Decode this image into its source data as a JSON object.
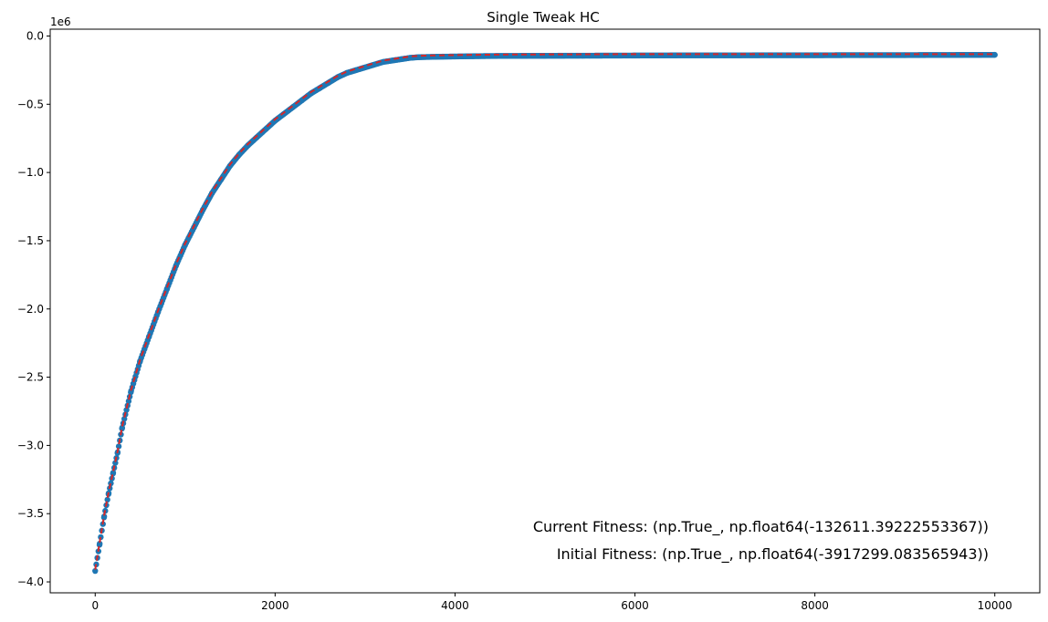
{
  "chart_data": {
    "type": "scatter",
    "title": "Single Tweak HC",
    "xlabel": "",
    "ylabel": "",
    "y_offset_label": "1e6",
    "xlim": [
      -500,
      10500
    ],
    "ylim": [
      -4.08,
      0.05
    ],
    "x_ticks": [
      0,
      2000,
      4000,
      6000,
      8000,
      10000
    ],
    "x_tick_labels": [
      "0",
      "2000",
      "4000",
      "6000",
      "8000",
      "10000"
    ],
    "y_ticks": [
      0.0,
      -0.5,
      -1.0,
      -1.5,
      -2.0,
      -2.5,
      -3.0,
      -3.5,
      -4.0
    ],
    "y_tick_labels": [
      "0.0",
      "−0.5",
      "−1.0",
      "−1.5",
      "−2.0",
      "−2.5",
      "−3.0",
      "−3.5",
      "−4.0"
    ],
    "grid": false,
    "series": [
      {
        "color": "#1f77b4",
        "marker": "circle",
        "x": [
          0,
          50,
          100,
          150,
          200,
          250,
          300,
          400,
          500,
          600,
          700,
          800,
          900,
          1000,
          1100,
          1200,
          1300,
          1400,
          1500,
          1600,
          1700,
          1800,
          1900,
          2000,
          2100,
          2200,
          2300,
          2400,
          2500,
          2600,
          2700,
          2800,
          2900,
          3000,
          3100,
          3200,
          3300,
          3400,
          3500,
          3600,
          3800,
          4000,
          4200,
          4500,
          5000,
          5500,
          6000,
          6500,
          7000,
          7500,
          8000,
          8500,
          9000,
          9500,
          10000
        ],
        "y": [
          -3.92,
          -3.72,
          -3.52,
          -3.35,
          -3.2,
          -3.05,
          -2.87,
          -2.6,
          -2.38,
          -2.2,
          -2.02,
          -1.85,
          -1.68,
          -1.53,
          -1.4,
          -1.27,
          -1.15,
          -1.05,
          -0.95,
          -0.87,
          -0.8,
          -0.74,
          -0.68,
          -0.62,
          -0.57,
          -0.52,
          -0.47,
          -0.42,
          -0.38,
          -0.34,
          -0.3,
          -0.27,
          -0.25,
          -0.23,
          -0.21,
          -0.19,
          -0.18,
          -0.17,
          -0.16,
          -0.155,
          -0.152,
          -0.15,
          -0.148,
          -0.146,
          -0.145,
          -0.144,
          -0.143,
          -0.142,
          -0.142,
          -0.141,
          -0.141,
          -0.14,
          -0.14,
          -0.139,
          -0.138
        ]
      },
      {
        "color": "#d62728",
        "style": "dashed line",
        "x": [
          0,
          50,
          100,
          150,
          200,
          250,
          300,
          400,
          500,
          600,
          700,
          800,
          900,
          1000,
          1100,
          1200,
          1300,
          1400,
          1500,
          1600,
          1700,
          1800,
          1900,
          2000,
          2100,
          2200,
          2300,
          2400,
          2500,
          2600,
          2700,
          2800,
          2900,
          3000,
          3100,
          3200,
          3300,
          3400,
          3500,
          3600,
          3800,
          4000,
          4200,
          4500,
          5000,
          5500,
          6000,
          6500,
          7000,
          7500,
          8000,
          8500,
          9000,
          9500,
          10000
        ],
        "y": [
          -3.91,
          -3.71,
          -3.51,
          -3.34,
          -3.19,
          -3.04,
          -2.86,
          -2.59,
          -2.37,
          -2.19,
          -2.01,
          -1.84,
          -1.67,
          -1.52,
          -1.39,
          -1.26,
          -1.14,
          -1.04,
          -0.94,
          -0.86,
          -0.79,
          -0.73,
          -0.67,
          -0.61,
          -0.56,
          -0.51,
          -0.46,
          -0.41,
          -0.37,
          -0.33,
          -0.29,
          -0.26,
          -0.24,
          -0.22,
          -0.2,
          -0.18,
          -0.17,
          -0.16,
          -0.15,
          -0.145,
          -0.142,
          -0.14,
          -0.138,
          -0.136,
          -0.135,
          -0.134,
          -0.133,
          -0.133,
          -0.133,
          -0.133,
          -0.133,
          -0.133,
          -0.133,
          -0.133,
          -0.133
        ]
      }
    ],
    "annotations": [
      "Current Fitness: (np.True_, np.float64(-132611.39222553367))",
      "Initial Fitness: (np.True_, np.float64(-3917299.083565943))"
    ]
  }
}
